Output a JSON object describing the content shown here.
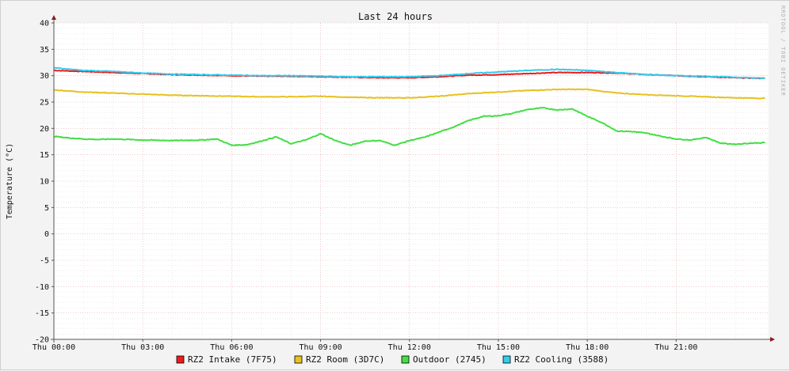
{
  "chart_data": {
    "type": "line",
    "title": "Last 24 hours",
    "ylabel": "Temperature (°C)",
    "xlabel": "",
    "watermark": "RRDTOOL / TOBI OETIKER",
    "ylim": [
      -20,
      40
    ],
    "y_ticks": [
      40,
      35,
      30,
      25,
      20,
      15,
      10,
      5,
      0,
      -5,
      -10,
      -15,
      -20
    ],
    "x_range_hours": [
      0,
      24
    ],
    "x_tick_hours": [
      0,
      3,
      6,
      9,
      12,
      15,
      18,
      21
    ],
    "x_tick_labels": [
      "Thu 00:00",
      "Thu 03:00",
      "Thu 06:00",
      "Thu 09:00",
      "Thu 12:00",
      "Thu 15:00",
      "Thu 18:00",
      "Thu 21:00"
    ],
    "grid": true,
    "legend_position": "bottom",
    "series": [
      {
        "name": "RZ2 Intake (7F75)",
        "color": "#ee1a1a",
        "points": [
          [
            0,
            31.0
          ],
          [
            1,
            30.8
          ],
          [
            2,
            30.6
          ],
          [
            3,
            30.4
          ],
          [
            4,
            30.2
          ],
          [
            5,
            30.1
          ],
          [
            6,
            30.0
          ],
          [
            7,
            29.9
          ],
          [
            8,
            29.9
          ],
          [
            9,
            29.8
          ],
          [
            10,
            29.7
          ],
          [
            11,
            29.6
          ],
          [
            12,
            29.6
          ],
          [
            13,
            29.8
          ],
          [
            14,
            30.1
          ],
          [
            15,
            30.2
          ],
          [
            16,
            30.4
          ],
          [
            17,
            30.6
          ],
          [
            18,
            30.6
          ],
          [
            19,
            30.5
          ],
          [
            20,
            30.2
          ],
          [
            21,
            30.0
          ],
          [
            22,
            29.8
          ],
          [
            23,
            29.6
          ],
          [
            24,
            29.5
          ]
        ]
      },
      {
        "name": "RZ2 Room (3D7C)",
        "color": "#e8c020",
        "points": [
          [
            0,
            27.3
          ],
          [
            1,
            26.9
          ],
          [
            2,
            26.7
          ],
          [
            3,
            26.5
          ],
          [
            4,
            26.3
          ],
          [
            5,
            26.2
          ],
          [
            6,
            26.1
          ],
          [
            7,
            26.0
          ],
          [
            8,
            26.0
          ],
          [
            9,
            26.1
          ],
          [
            10,
            25.9
          ],
          [
            11,
            25.8
          ],
          [
            12,
            25.8
          ],
          [
            13,
            26.1
          ],
          [
            14,
            26.6
          ],
          [
            15,
            26.9
          ],
          [
            16,
            27.2
          ],
          [
            17,
            27.4
          ],
          [
            18,
            27.4
          ],
          [
            19,
            26.7
          ],
          [
            20,
            26.4
          ],
          [
            21,
            26.2
          ],
          [
            22,
            26.0
          ],
          [
            23,
            25.8
          ],
          [
            24,
            25.7
          ]
        ]
      },
      {
        "name": "Outdoor (2745)",
        "color": "#44dd44",
        "points": [
          [
            0,
            18.5
          ],
          [
            0.5,
            18.2
          ],
          [
            1,
            18.0
          ],
          [
            1.5,
            17.9
          ],
          [
            2,
            18.0
          ],
          [
            3,
            17.8
          ],
          [
            4,
            17.7
          ],
          [
            5,
            17.8
          ],
          [
            5.5,
            18.0
          ],
          [
            6,
            16.8
          ],
          [
            6.5,
            16.9
          ],
          [
            7,
            17.6
          ],
          [
            7.5,
            18.4
          ],
          [
            8,
            17.1
          ],
          [
            8.5,
            17.8
          ],
          [
            9,
            19.0
          ],
          [
            9.5,
            17.7
          ],
          [
            10,
            16.8
          ],
          [
            10.5,
            17.6
          ],
          [
            11,
            17.7
          ],
          [
            11.5,
            16.8
          ],
          [
            12,
            17.7
          ],
          [
            12.5,
            18.3
          ],
          [
            13,
            19.3
          ],
          [
            13.5,
            20.3
          ],
          [
            14,
            21.5
          ],
          [
            14.5,
            22.3
          ],
          [
            15,
            22.4
          ],
          [
            15.5,
            22.9
          ],
          [
            16,
            23.6
          ],
          [
            16.5,
            23.9
          ],
          [
            17,
            23.5
          ],
          [
            17.5,
            23.7
          ],
          [
            18,
            22.3
          ],
          [
            18.5,
            21.1
          ],
          [
            19,
            19.5
          ],
          [
            19.5,
            19.4
          ],
          [
            20,
            19.1
          ],
          [
            20.5,
            18.5
          ],
          [
            21,
            18.0
          ],
          [
            21.5,
            17.8
          ],
          [
            22,
            18.3
          ],
          [
            22.5,
            17.2
          ],
          [
            23,
            17.0
          ],
          [
            23.5,
            17.2
          ],
          [
            24,
            17.3
          ]
        ]
      },
      {
        "name": "RZ2 Cooling (3588)",
        "color": "#33ccee",
        "points": [
          [
            0,
            31.5
          ],
          [
            1,
            31.0
          ],
          [
            2,
            30.8
          ],
          [
            3,
            30.5
          ],
          [
            4,
            30.3
          ],
          [
            5,
            30.2
          ],
          [
            6,
            30.1
          ],
          [
            7,
            30.0
          ],
          [
            8,
            30.0
          ],
          [
            9,
            29.9
          ],
          [
            10,
            29.8
          ],
          [
            11,
            29.8
          ],
          [
            12,
            29.8
          ],
          [
            13,
            30.0
          ],
          [
            14,
            30.4
          ],
          [
            15,
            30.7
          ],
          [
            16,
            31.0
          ],
          [
            17,
            31.2
          ],
          [
            18,
            31.0
          ],
          [
            19,
            30.6
          ],
          [
            20,
            30.2
          ],
          [
            21,
            30.0
          ],
          [
            22,
            29.9
          ],
          [
            23,
            29.7
          ],
          [
            24,
            29.5
          ]
        ]
      }
    ]
  }
}
